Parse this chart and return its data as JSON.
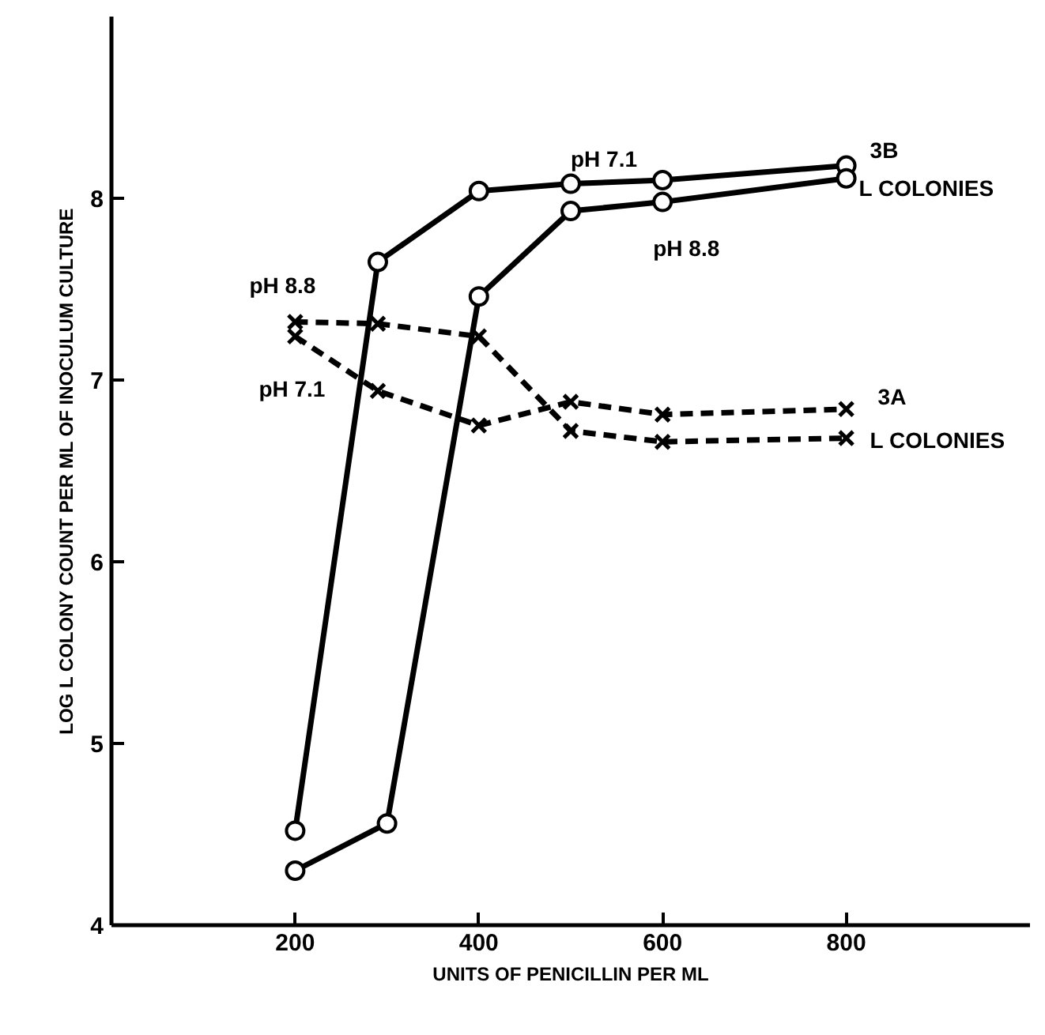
{
  "chart_data": {
    "type": "line",
    "xlabel": "UNITS OF PENICILLIN PER ML",
    "ylabel": "LOG L COLONY COUNT PER ML OF INOCULUM CULTURE",
    "xlim": [
      0,
      1000
    ],
    "ylim": [
      4,
      9
    ],
    "xticks": [
      200,
      400,
      600,
      800
    ],
    "yticks": [
      4,
      5,
      6,
      7,
      8
    ],
    "grid": false,
    "series": [
      {
        "name": "pH 7.1",
        "color": "#000000",
        "marker": "circle",
        "line_style": "solid",
        "x": [
          200,
          290,
          400,
          500,
          600,
          800
        ],
        "values": [
          4.52,
          7.65,
          8.04,
          8.08,
          8.1,
          8.18
        ]
      },
      {
        "name": "pH 8.8",
        "color": "#000000",
        "marker": "circle",
        "line_style": "solid",
        "x": [
          200,
          300,
          400,
          500,
          600,
          800
        ],
        "values": [
          4.3,
          4.56,
          7.46,
          7.93,
          7.98,
          8.11
        ]
      },
      {
        "name": "pH 7.1",
        "color": "#000000",
        "marker": "cross",
        "line_style": "dashed",
        "x": [
          200,
          290,
          400,
          500,
          600,
          800
        ],
        "values": [
          7.24,
          6.94,
          6.75,
          6.88,
          6.81,
          6.84
        ]
      },
      {
        "name": "pH 8.8",
        "color": "#000000",
        "marker": "cross",
        "line_style": "dashed",
        "x": [
          200,
          290,
          400,
          500,
          600,
          800
        ],
        "values": [
          7.32,
          7.31,
          7.24,
          6.72,
          6.66,
          6.68
        ]
      }
    ],
    "annotations": [
      "3B",
      "L COLONIES",
      "3A",
      "L COLONIES"
    ]
  }
}
